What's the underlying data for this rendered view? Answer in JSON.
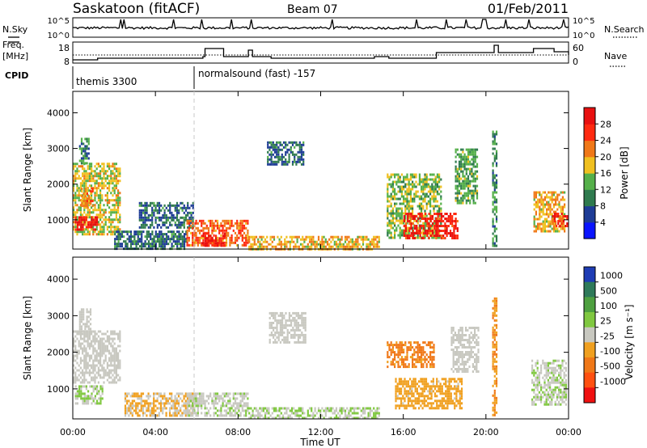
{
  "header": {
    "station": "Saskatoon (fitACF)",
    "beam": "Beam 07",
    "date": "01/Feb/2011"
  },
  "labels": {
    "nsky": "N.Sky",
    "nsearch": "N.Search",
    "freq_line1": "Freq.",
    "freq_line2": "[MHz]",
    "nave": "Nave",
    "cpid": "CPID",
    "cpid_mode1": "themis 3300",
    "cpid_mode2": "normalsound (fast) -157"
  },
  "noise_panel": {
    "left_ticks": [
      "10^5",
      "10^0"
    ],
    "right_ticks": [
      "10^5",
      "10^0"
    ]
  },
  "freq_panel": {
    "left_ticks": [
      "18",
      "8"
    ],
    "right_ticks": [
      "60",
      "0"
    ]
  },
  "power_colorbar": {
    "label": "Power [dB]",
    "ticks": [
      "4",
      "8",
      "12",
      "16",
      "20",
      "24",
      "28"
    ],
    "colors": [
      "#0a14ff",
      "#1e3c96",
      "#2f7a4e",
      "#55b04a",
      "#f0c020",
      "#f07818",
      "#ff2a10",
      "#e81010"
    ]
  },
  "velocity_colorbar": {
    "label": "Velocity [m s⁻¹]",
    "ticks": [
      "1000",
      "500",
      "100",
      "25",
      "-25",
      "-100",
      "-500",
      "-1000"
    ],
    "colors": [
      "#1e3cb4",
      "#2f7a5a",
      "#4ea040",
      "#80c840",
      "#c8c8c0",
      "#f0a020",
      "#f07818",
      "#ff5010",
      "#f01010"
    ]
  },
  "chart_data": [
    {
      "type": "heatmap",
      "panel": "power",
      "ylabel": "Slant Range [km]",
      "xlabel": "",
      "xticks": [
        "00:00",
        "04:00",
        "08:00",
        "12:00",
        "16:00",
        "20:00",
        "00:00"
      ],
      "yticks": [
        1000,
        2000,
        3000,
        4000
      ],
      "ylim": [
        180,
        4600
      ],
      "xlim_hours": [
        0,
        24
      ],
      "value_label": "Power [dB]",
      "value_range": [
        0,
        30
      ],
      "regions": [
        {
          "t": [
            0.0,
            2.3
          ],
          "r": [
            600,
            2600
          ],
          "v": 16
        },
        {
          "t": [
            0.1,
            1.2
          ],
          "r": [
            700,
            1100
          ],
          "v": 28
        },
        {
          "t": [
            0.4,
            1.0
          ],
          "r": [
            1400,
            1900
          ],
          "v": 20
        },
        {
          "t": [
            0.3,
            0.8
          ],
          "r": [
            2600,
            3300
          ],
          "v": 10
        },
        {
          "t": [
            2.0,
            5.5
          ],
          "r": [
            200,
            700
          ],
          "v": 8
        },
        {
          "t": [
            3.2,
            5.8
          ],
          "r": [
            800,
            1500
          ],
          "v": 8
        },
        {
          "t": [
            5.5,
            8.5
          ],
          "r": [
            300,
            1000
          ],
          "v": 22
        },
        {
          "t": [
            6.2,
            7.4
          ],
          "r": [
            300,
            650
          ],
          "v": 28
        },
        {
          "t": [
            8.5,
            14.8
          ],
          "r": [
            200,
            550
          ],
          "v": 18
        },
        {
          "t": [
            9.4,
            11.2
          ],
          "r": [
            2550,
            3200
          ],
          "v": 8
        },
        {
          "t": [
            15.2,
            17.8
          ],
          "r": [
            500,
            2300
          ],
          "v": 14
        },
        {
          "t": [
            16.0,
            18.6
          ],
          "r": [
            500,
            1200
          ],
          "v": 26
        },
        {
          "t": [
            18.5,
            19.6
          ],
          "r": [
            1500,
            3000
          ],
          "v": 12
        },
        {
          "t": [
            20.3,
            20.5
          ],
          "r": [
            300,
            3500
          ],
          "v": 10
        },
        {
          "t": [
            22.3,
            23.8
          ],
          "r": [
            700,
            1800
          ],
          "v": 18
        },
        {
          "t": [
            23.2,
            23.9
          ],
          "r": [
            800,
            1200
          ],
          "v": 26
        }
      ]
    },
    {
      "type": "heatmap",
      "panel": "velocity",
      "ylabel": "Slant Range [km]",
      "xlabel": "Time UT",
      "xticks": [
        "00:00",
        "04:00",
        "08:00",
        "12:00",
        "16:00",
        "20:00",
        "00:00"
      ],
      "yticks": [
        1000,
        2000,
        3000,
        4000
      ],
      "ylim": [
        180,
        4600
      ],
      "xlim_hours": [
        0,
        24
      ],
      "value_label": "Velocity [m s⁻¹]",
      "value_range": [
        -1000,
        1000
      ],
      "regions": [
        {
          "t": [
            0.0,
            2.3
          ],
          "r": [
            1200,
            2600
          ],
          "v": 0
        },
        {
          "t": [
            0.1,
            1.4
          ],
          "r": [
            600,
            1100
          ],
          "v": 120
        },
        {
          "t": [
            0.3,
            0.9
          ],
          "r": [
            2600,
            3200
          ],
          "v": 0
        },
        {
          "t": [
            2.5,
            5.8
          ],
          "r": [
            300,
            900
          ],
          "v": -120
        },
        {
          "t": [
            5.5,
            8.5
          ],
          "r": [
            300,
            900
          ],
          "v": 60
        },
        {
          "t": [
            8.5,
            14.8
          ],
          "r": [
            200,
            500
          ],
          "v": 100
        },
        {
          "t": [
            9.5,
            11.3
          ],
          "r": [
            2300,
            3100
          ],
          "v": 0
        },
        {
          "t": [
            15.2,
            17.5
          ],
          "r": [
            1600,
            2300
          ],
          "v": -400
        },
        {
          "t": [
            15.6,
            18.8
          ],
          "r": [
            500,
            1300
          ],
          "v": -200
        },
        {
          "t": [
            18.3,
            19.6
          ],
          "r": [
            1500,
            2700
          ],
          "v": 0
        },
        {
          "t": [
            20.3,
            20.5
          ],
          "r": [
            300,
            3500
          ],
          "v": -300
        },
        {
          "t": [
            22.2,
            23.9
          ],
          "r": [
            600,
            1800
          ],
          "v": 80
        }
      ]
    }
  ]
}
